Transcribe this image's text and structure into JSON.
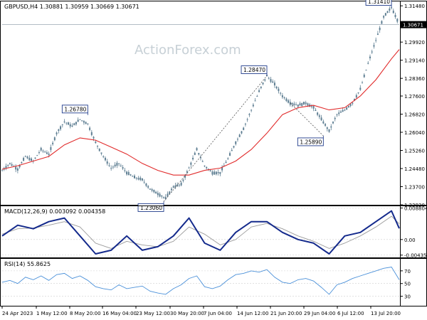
{
  "main_header": {
    "symbol": "GBPUSD,H4",
    "open": "1.30881",
    "high": "1.30959",
    "low": "1.30669",
    "close": "1.30671"
  },
  "watermark": "ActionForex.com",
  "current_price_label": "1.30671",
  "colors": {
    "candle": "#5f7f93",
    "ma": "#e12b2b",
    "macd_line": "#142a8c",
    "macd_signal": "#9b9b9b",
    "rsi": "#4a90d9",
    "grid": "#cfcfcf",
    "annotation": "#1e3a8a"
  },
  "chart_data": [
    {
      "type": "candlestick",
      "title": "GBPUSD,H4 1.30881 1.30959 1.30669 1.30671",
      "ylim": [
        1.2292,
        1.317
      ],
      "y_ticks": [
        "1.31480",
        "1.30671",
        "1.29920",
        "1.29140",
        "1.28360",
        "1.27600",
        "1.26820",
        "1.26040",
        "1.25260",
        "1.24480",
        "1.23700",
        "1.22920"
      ],
      "y_tick_values": [
        1.3148,
        1.30671,
        1.2992,
        1.2914,
        1.2836,
        1.276,
        1.2682,
        1.2604,
        1.2526,
        1.2448,
        1.237,
        1.2292
      ],
      "x_ticks": [
        "24 Apr 2023",
        "1 May 12:00",
        "8 May 20:00",
        "16 May 04:00",
        "23 May 12:00",
        "30 May 20:00",
        "7 Jun 04:00",
        "14 Jun 12:00",
        "21 Jun 20:00",
        "29 Jun 04:00",
        "6 Jul 12:00",
        "13 Jul 20:00"
      ],
      "series": [
        {
          "name": "",
          "style": "close path",
          "x": [
            0,
            4,
            8,
            12,
            16,
            20,
            24,
            28,
            32,
            36,
            40,
            44,
            48,
            52,
            56,
            60,
            64,
            68,
            72,
            76,
            80,
            84,
            88,
            92,
            96,
            100,
            104,
            108,
            112,
            116,
            120,
            124,
            128,
            132,
            136,
            140,
            144,
            148,
            152,
            156,
            160,
            164,
            168,
            172,
            176,
            180,
            184,
            188,
            192,
            196,
            200,
            204
          ],
          "y": [
            1.244,
            1.247,
            1.2445,
            1.25,
            1.248,
            1.253,
            1.251,
            1.26,
            1.265,
            1.263,
            1.266,
            1.264,
            1.256,
            1.25,
            1.245,
            1.247,
            1.243,
            1.241,
            1.24,
            1.236,
            1.234,
            1.232,
            1.237,
            1.238,
            1.245,
            1.253,
            1.246,
            1.243,
            1.243,
            1.249,
            1.256,
            1.262,
            1.27,
            1.278,
            1.2847,
            1.281,
            1.276,
            1.273,
            1.272,
            1.273,
            1.271,
            1.266,
            1.261,
            1.268,
            1.27,
            1.273,
            1.279,
            1.29,
            1.3,
            1.31,
            1.3141,
            1.307
          ]
        },
        {
          "name": "",
          "style": "moving average",
          "x": [
            0,
            8,
            16,
            24,
            32,
            40,
            48,
            56,
            64,
            72,
            80,
            88,
            96,
            104,
            112,
            120,
            128,
            136,
            144,
            152,
            160,
            168,
            176,
            184,
            192,
            200,
            204
          ],
          "y": [
            1.2445,
            1.246,
            1.248,
            1.25,
            1.255,
            1.258,
            1.257,
            1.254,
            1.251,
            1.247,
            1.244,
            1.242,
            1.242,
            1.244,
            1.245,
            1.248,
            1.253,
            1.26,
            1.268,
            1.271,
            1.272,
            1.27,
            1.271,
            1.276,
            1.283,
            1.292,
            1.296
          ]
        }
      ],
      "annotations": [
        {
          "text": "1.26780",
          "x": 44,
          "y": 1.2678
        },
        {
          "text": "1.23060",
          "x": 83,
          "y": 1.2306
        },
        {
          "text": "1.28470",
          "x": 136,
          "y": 1.2847
        },
        {
          "text": "1.25890",
          "x": 165,
          "y": 1.2589
        },
        {
          "text": "1.31410",
          "x": 200,
          "y": 1.3141
        }
      ],
      "trend_lines": [
        {
          "from": [
            83,
            1.2306
          ],
          "to": [
            136,
            1.2847
          ]
        },
        {
          "from": [
            148,
            1.273
          ],
          "to": [
            165,
            1.2589
          ]
        }
      ]
    },
    {
      "type": "line",
      "title": "MACD(12,26,9) 0.003092 0.004358",
      "ylim": [
        -0.005,
        0.0095
      ],
      "y_ticks": [
        "0.008804",
        "0.00",
        "-0.004354"
      ],
      "y_tick_values": [
        0.008804,
        0.0,
        -0.004354
      ],
      "series": [
        {
          "name": "",
          "x": [
            0,
            8,
            16,
            24,
            32,
            40,
            48,
            56,
            64,
            72,
            80,
            88,
            96,
            104,
            112,
            120,
            128,
            136,
            144,
            152,
            160,
            168,
            176,
            184,
            192,
            200,
            204
          ],
          "y": [
            0.001,
            0.004,
            0.003,
            0.005,
            0.006,
            0.001,
            -0.004,
            -0.003,
            0.001,
            -0.003,
            -0.002,
            0.001,
            0.006,
            -0.001,
            -0.003,
            0.002,
            0.005,
            0.005,
            0.002,
            0.0,
            -0.001,
            -0.004,
            0.001,
            0.002,
            0.005,
            0.008,
            0.0031
          ]
        },
        {
          "name": "",
          "x": [
            0,
            8,
            16,
            24,
            32,
            40,
            48,
            56,
            64,
            72,
            80,
            88,
            96,
            104,
            112,
            120,
            128,
            136,
            144,
            152,
            160,
            168,
            176,
            184,
            192,
            200,
            204
          ],
          "y": [
            0.0015,
            0.003,
            0.0032,
            0.004,
            0.005,
            0.0035,
            -0.001,
            -0.0025,
            -0.0005,
            -0.0015,
            -0.002,
            -0.0005,
            0.0035,
            0.0015,
            -0.0015,
            0.0,
            0.0035,
            0.0045,
            0.003,
            0.001,
            -0.0005,
            -0.0025,
            -0.001,
            0.001,
            0.0035,
            0.0065,
            0.0044
          ]
        }
      ]
    },
    {
      "type": "line",
      "title": "RSI(14) 55.8625",
      "ylim": [
        15,
        90
      ],
      "y_ticks": [
        "70",
        "50",
        "30"
      ],
      "y_tick_values": [
        70,
        50,
        30
      ],
      "series": [
        {
          "name": "",
          "x": [
            0,
            4,
            8,
            12,
            16,
            20,
            24,
            28,
            32,
            36,
            40,
            44,
            48,
            52,
            56,
            60,
            64,
            68,
            72,
            76,
            80,
            84,
            88,
            92,
            96,
            100,
            104,
            108,
            112,
            116,
            120,
            124,
            128,
            132,
            136,
            140,
            144,
            148,
            152,
            156,
            160,
            164,
            168,
            172,
            176,
            180,
            184,
            188,
            192,
            196,
            200,
            204
          ],
          "y": [
            52,
            55,
            50,
            60,
            56,
            62,
            55,
            64,
            66,
            58,
            62,
            55,
            45,
            42,
            40,
            48,
            42,
            44,
            46,
            38,
            35,
            33,
            42,
            48,
            58,
            62,
            45,
            42,
            46,
            56,
            64,
            66,
            70,
            68,
            72,
            60,
            52,
            50,
            56,
            58,
            54,
            44,
            33,
            48,
            52,
            58,
            62,
            66,
            70,
            74,
            76,
            56
          ]
        }
      ]
    }
  ]
}
